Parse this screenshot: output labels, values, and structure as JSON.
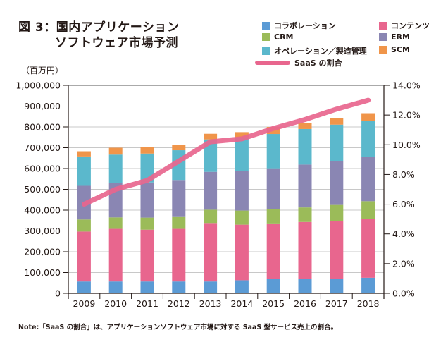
{
  "chart_data": {
    "type": "bar",
    "stacked": true,
    "title": "図 3：国内アプリケーションソフトウェア市場予測",
    "title_lines": [
      "図 3：国内アプリケーション",
      "ソフトウェア市場予測"
    ],
    "ylabel": "（百万円）",
    "y2label": "",
    "xlabel": "",
    "categories": [
      "2009",
      "2010",
      "2011",
      "2012",
      "2013",
      "2014",
      "2015",
      "2016",
      "2017",
      "2018"
    ],
    "ylim": [
      0,
      1000000
    ],
    "yticks": [
      0,
      100000,
      200000,
      300000,
      400000,
      500000,
      600000,
      700000,
      800000,
      900000,
      1000000
    ],
    "ytick_labels": [
      "0",
      "100,000",
      "200,000",
      "300,000",
      "400,000",
      "500,000",
      "600,000",
      "700,000",
      "800,000",
      "900,000",
      "1,000,000"
    ],
    "y2lim": [
      0,
      14
    ],
    "y2ticks": [
      0,
      2,
      4,
      6,
      8,
      10,
      12,
      14
    ],
    "y2tick_labels": [
      "0.0%",
      "2.0%",
      "4.0%",
      "6.0%",
      "8.0%",
      "10.0%",
      "12.0%",
      "14.0%"
    ],
    "grid": true,
    "legend_position": "top-right",
    "series": [
      {
        "name": "コラボレーション",
        "color": "#5b9bd5",
        "values": [
          57000,
          57000,
          57000,
          57000,
          57000,
          63000,
          68000,
          68000,
          68000,
          75000
        ]
      },
      {
        "name": "コンテンツ",
        "color": "#e8668e",
        "values": [
          240000,
          253000,
          249000,
          253000,
          281000,
          267000,
          268000,
          275000,
          280000,
          283000
        ]
      },
      {
        "name": "CRM",
        "color": "#9bbb59",
        "values": [
          58000,
          55000,
          58000,
          57000,
          64000,
          68000,
          70000,
          70000,
          77000,
          85000
        ]
      },
      {
        "name": "ERM",
        "color": "#8a86b3",
        "values": [
          162000,
          167000,
          169000,
          178000,
          182000,
          190000,
          195000,
          206000,
          211000,
          212000
        ]
      },
      {
        "name": "オペレーション／製造管理",
        "color": "#5bb8cc",
        "values": [
          141000,
          135000,
          139000,
          143000,
          156000,
          160000,
          165000,
          171000,
          175000,
          174000
        ]
      },
      {
        "name": "SCM",
        "color": "#f0954a",
        "values": [
          25000,
          33000,
          31000,
          27000,
          27000,
          27000,
          34000,
          28000,
          31000,
          37000
        ]
      }
    ],
    "line_series": {
      "name": "SaaS の割合",
      "color": "#e8668e",
      "axis": "right",
      "values": [
        6.0,
        7.0,
        7.6,
        8.9,
        10.2,
        10.4,
        11.1,
        11.7,
        12.4,
        13.0
      ]
    },
    "legend": [
      {
        "label": "コラボレーション",
        "type": "box",
        "color": "#5b9bd5"
      },
      {
        "label": "コンテンツ",
        "type": "box",
        "color": "#e8668e"
      },
      {
        "label": "CRM",
        "type": "box",
        "color": "#9bbb59"
      },
      {
        "label": "ERM",
        "type": "box",
        "color": "#8a86b3"
      },
      {
        "label": "オペレーション／製造管理",
        "type": "box",
        "color": "#5bb8cc"
      },
      {
        "label": "SCM",
        "type": "box",
        "color": "#f0954a"
      },
      {
        "label": "SaaS の割合",
        "type": "line",
        "color": "#e8668e"
      }
    ],
    "note": "Note:「SaaS の割合」は、アプリケーションソフトウェア市場に対する SaaS 型サービス売上の割合。"
  }
}
